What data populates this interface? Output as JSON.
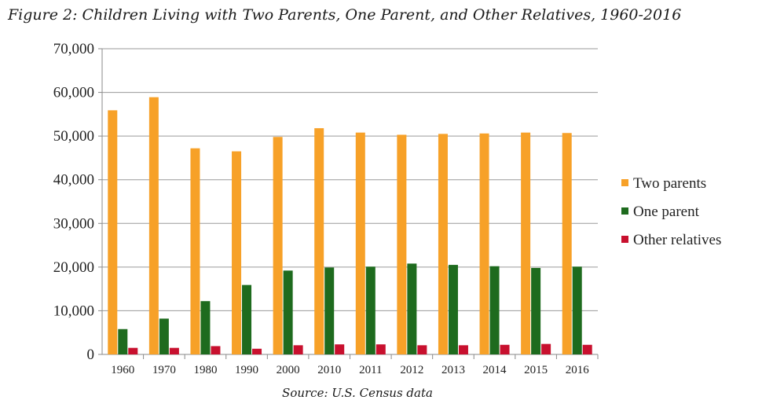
{
  "chart_data": {
    "type": "bar",
    "title": "Figure 2: Children Living with Two Parents, One Parent, and Other Relatives, 1960-2016",
    "source": "Source: U.S. Census data",
    "categories": [
      "1960",
      "1970",
      "1980",
      "1990",
      "2000",
      "2010",
      "2011",
      "2012",
      "2013",
      "2014",
      "2015",
      "2016"
    ],
    "series": [
      {
        "name": "Two parents",
        "color": "#F7A128",
        "values": [
          55900,
          58900,
          47200,
          46500,
          49800,
          51800,
          50800,
          50300,
          50500,
          50600,
          50800,
          50700
        ]
      },
      {
        "name": "One parent",
        "color": "#1E6B1E",
        "values": [
          5800,
          8200,
          12200,
          15900,
          19200,
          19900,
          20100,
          20800,
          20500,
          20200,
          19800,
          20100
        ]
      },
      {
        "name": "Other relatives",
        "color": "#C8102E",
        "values": [
          1500,
          1500,
          1900,
          1300,
          2100,
          2300,
          2300,
          2100,
          2100,
          2200,
          2400,
          2200
        ]
      }
    ],
    "ylim": [
      0,
      70000
    ],
    "yticks": [
      "0",
      "10,000",
      "20,000",
      "30,000",
      "40,000",
      "50,000",
      "60,000",
      "70,000"
    ],
    "grid": true,
    "legend_position": "right"
  }
}
